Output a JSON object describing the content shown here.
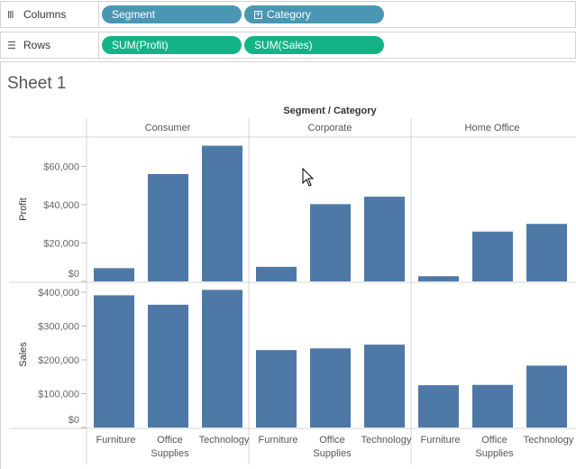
{
  "columns_shelf": {
    "label": "Columns",
    "icon": "columns-icon",
    "pills": [
      "Segment",
      "Category"
    ]
  },
  "rows_shelf": {
    "label": "Rows",
    "icon": "rows-icon",
    "pills": [
      "SUM(Profit)",
      "SUM(Sales)"
    ]
  },
  "sheet": {
    "title": "Sheet 1"
  },
  "colors": {
    "bar": "#4e79a7",
    "dimension_pill": "#4b96b3",
    "measure_pill": "#13b386"
  },
  "chart_data": {
    "type": "bar",
    "header_title": "Segment / Category",
    "segments": [
      "Consumer",
      "Corporate",
      "Home Office"
    ],
    "categories": [
      "Furniture",
      "Office Supplies",
      "Technology"
    ],
    "category_tick_labels": [
      [
        "Furniture"
      ],
      [
        "Office",
        "Supplies"
      ],
      [
        "Technology"
      ]
    ],
    "profit": {
      "ylabel": "Profit",
      "ticks": [
        "$0",
        "$20,000",
        "$40,000",
        "$60,000"
      ],
      "tick_values": [
        0,
        20000,
        40000,
        60000
      ],
      "ylim": [
        0,
        72000
      ],
      "values": [
        [
          6900,
          56000,
          70800
        ],
        [
          7600,
          40300,
          44200
        ],
        [
          2700,
          26000,
          30000
        ]
      ]
    },
    "sales": {
      "ylabel": "Sales",
      "ticks": [
        "$0",
        "$100,000",
        "$200,000",
        "$300,000",
        "$400,000"
      ],
      "tick_values": [
        0,
        100000,
        200000,
        300000,
        400000
      ],
      "ylim": [
        0,
        408000
      ],
      "values": [
        [
          391000,
          363000,
          407000
        ],
        [
          229000,
          234000,
          245000
        ],
        [
          125000,
          126000,
          183000
        ]
      ]
    }
  }
}
